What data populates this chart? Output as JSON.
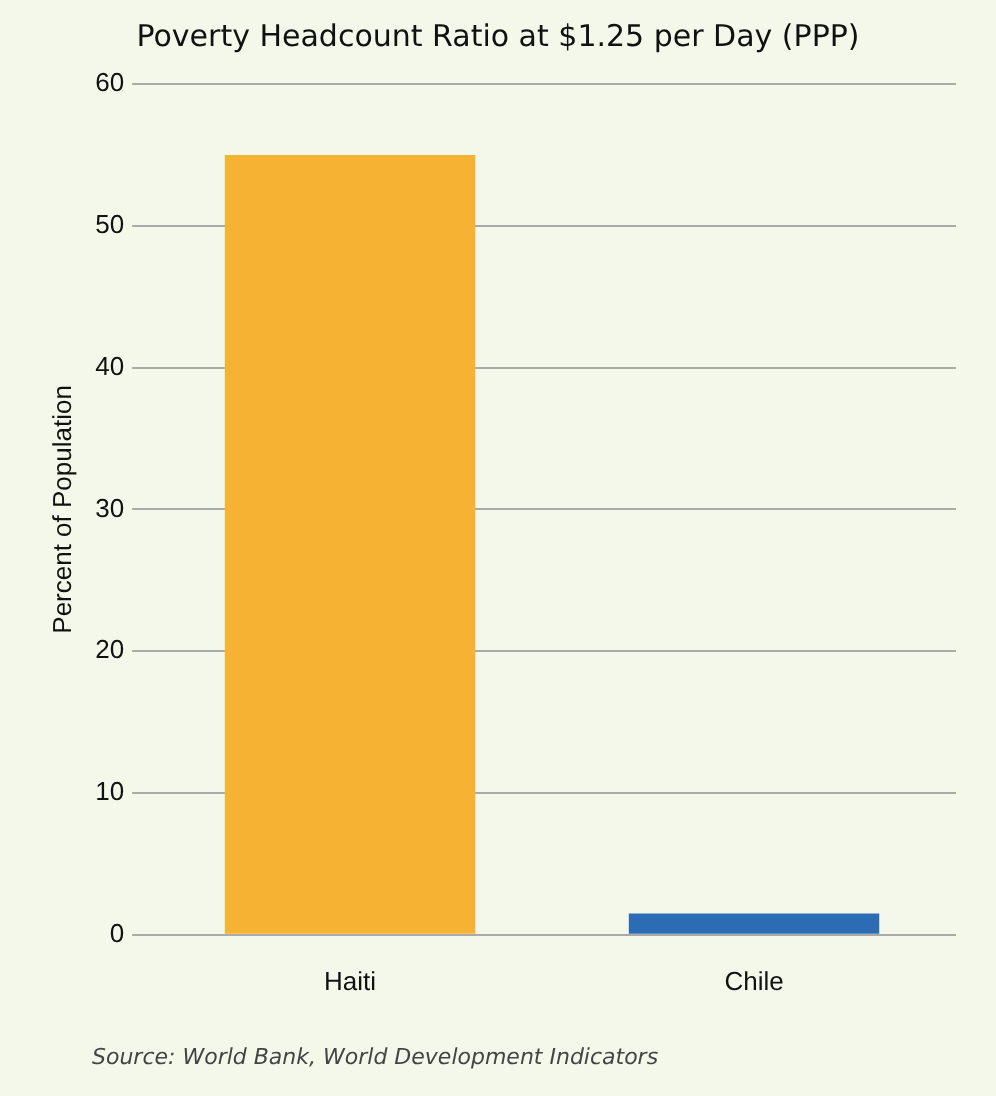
{
  "chart_data": {
    "type": "bar",
    "title": "Poverty Headcount Ratio at $1.25 per Day (PPP)",
    "ylabel": "Percent of Population",
    "categories": [
      "Haiti",
      "Chile"
    ],
    "values": [
      55,
      1.5
    ],
    "colors": [
      "#f6b333",
      "#2b6cb4"
    ],
    "ylim": [
      0,
      60
    ],
    "yticks": [
      0,
      10,
      20,
      30,
      40,
      50,
      60
    ],
    "grid": "y",
    "legend": false,
    "annotations": [
      "Source: World Bank, World Development Indicators"
    ]
  }
}
